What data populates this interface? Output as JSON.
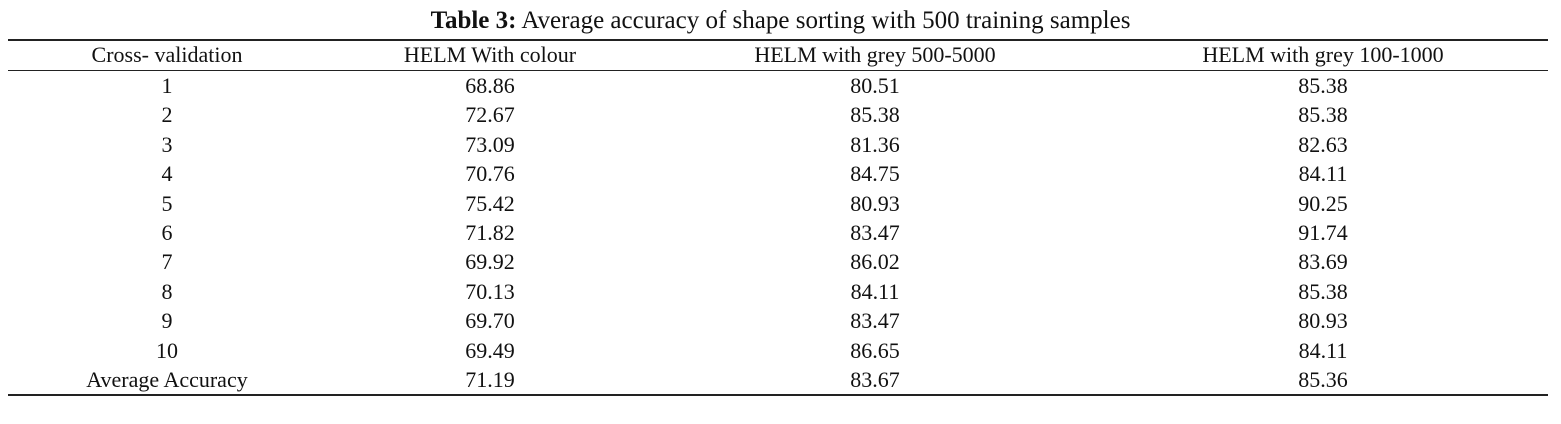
{
  "caption": {
    "label": "Table 3:",
    "text": "Average accuracy of shape sorting with 500 training samples"
  },
  "table": {
    "header": [
      "Cross- validation",
      "HELM With colour",
      "HELM with grey 500-5000",
      "HELM with grey 100-1000"
    ],
    "rows": [
      [
        "1",
        "68.86",
        "80.51",
        "85.38"
      ],
      [
        "2",
        "72.67",
        "85.38",
        "85.38"
      ],
      [
        "3",
        "73.09",
        "81.36",
        "82.63"
      ],
      [
        "4",
        "70.76",
        "84.75",
        "84.11"
      ],
      [
        "5",
        "75.42",
        "80.93",
        "90.25"
      ],
      [
        "6",
        "71.82",
        "83.47",
        "91.74"
      ],
      [
        "7",
        "69.92",
        "86.02",
        "83.69"
      ],
      [
        "8",
        "70.13",
        "84.11",
        "85.38"
      ],
      [
        "9",
        "69.70",
        "83.47",
        "80.93"
      ],
      [
        "10",
        "69.49",
        "86.65",
        "84.11"
      ],
      [
        "Average Accuracy",
        "71.19",
        "83.67",
        "85.36"
      ]
    ]
  }
}
